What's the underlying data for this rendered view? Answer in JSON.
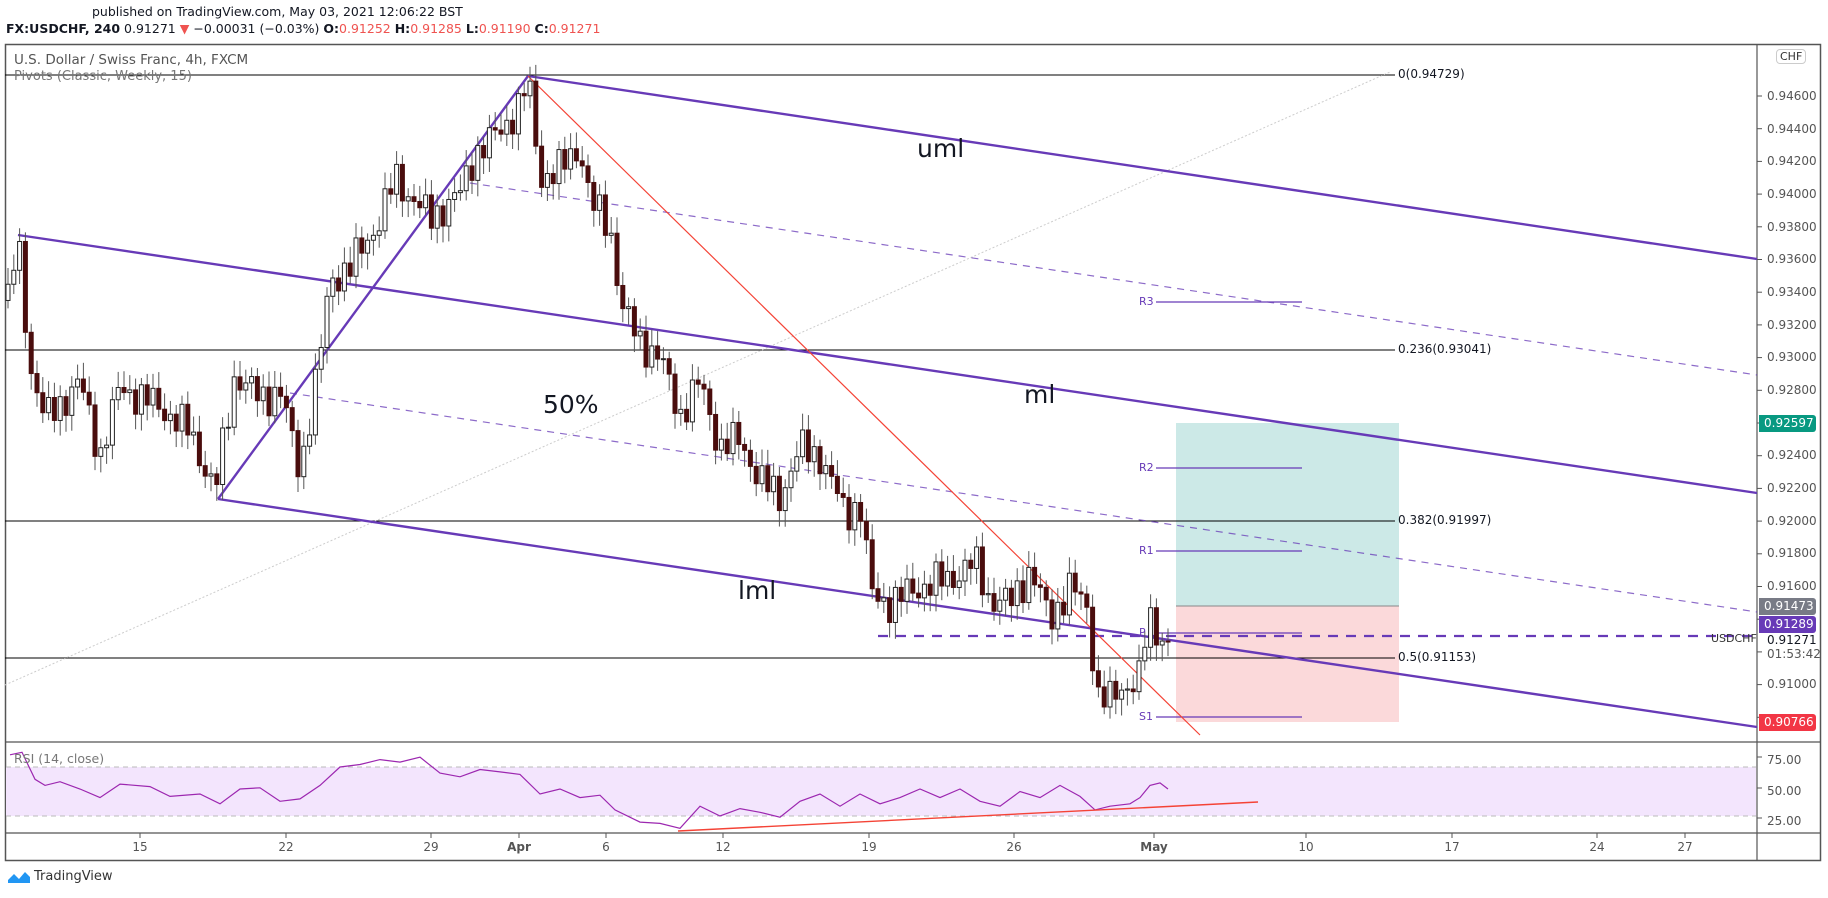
{
  "header": {
    "published": "published on TradingView.com, May 03, 2021 12:06:22 BST",
    "symbol": "FX:USDCHF, 240",
    "last": "0.91271",
    "change": "−0.00031 (−0.03%)",
    "o_label": "O:",
    "o": "0.91252",
    "h_label": "H:",
    "h": "0.91285",
    "l_label": "L:",
    "l": "0.91190",
    "c_label": "C:",
    "c": "0.91271"
  },
  "chart_title": "U.S. Dollar / Swiss Franc, 4h, FXCM",
  "indicator": "Pivots (Classic, Weekly, 15)",
  "rsi_label": "RSI (14, close)",
  "currency_badge": "CHF",
  "annotations": {
    "uml": "uml",
    "ml": "ml",
    "lml": "lml",
    "fifty": "50%",
    "fib0": "0(0.94729)",
    "fib236": "0.236(0.93041)",
    "fib382": "0.382(0.91997)",
    "fib5": "0.5(0.91153)",
    "r3": "R3",
    "r2": "R2",
    "r1": "R1",
    "p": "P",
    "s1": "S1"
  },
  "price_axis": [
    "0.94600",
    "0.94400",
    "0.94200",
    "0.94000",
    "0.93800",
    "0.93600",
    "0.93400",
    "0.93200",
    "0.93000",
    "0.92800",
    "0.92400",
    "0.92200",
    "0.92000",
    "0.91800",
    "0.91600",
    "0.91000"
  ],
  "price_tags": {
    "target": "0.92597",
    "entry": "0.91473",
    "pivot": "0.91289",
    "last": "0.91271",
    "stop": "0.90766",
    "symbol_label": "USDCHF",
    "countdown": "01:53:42"
  },
  "rsi_axis": [
    "75.00",
    "50.00",
    "25.00"
  ],
  "time_axis": [
    "15",
    "22",
    "29",
    "Apr",
    "6",
    "12",
    "19",
    "26",
    "May",
    "10",
    "17",
    "24",
    "27"
  ],
  "logo_text": "TradingView",
  "colors": {
    "channel": "#673ab7",
    "trendline": "#f44336",
    "target_fill": "#cce9e7",
    "stop_fill": "#fbd9da",
    "target_tag": "#089981",
    "stop_tag": "#f23645",
    "entry_tag": "#787b86",
    "pivot_tag": "#673ab7",
    "rsi_line": "#9c27b0",
    "rsi_band": "#f3e5fd",
    "bear_candle": "#4a0d0d"
  },
  "chart_data": {
    "type": "candlestick",
    "title": "U.S. Dollar / Swiss Franc, 4h, FXCM",
    "symbol": "FX:USDCHF",
    "timeframe": "4h",
    "ohlc_last": {
      "open": 0.91252,
      "high": 0.91285,
      "low": 0.9119,
      "close": 0.91271
    },
    "ylim": [
      0.906,
      0.948
    ],
    "x_ticks": [
      "15",
      "22",
      "29",
      "Apr",
      "6",
      "12",
      "19",
      "26",
      "May",
      "10",
      "17",
      "24",
      "27"
    ],
    "key_points": [
      {
        "date": "Mar 10",
        "price": 0.9375,
        "note": "swing high"
      },
      {
        "date": "Mar 18",
        "price": 0.9215,
        "note": "swing low"
      },
      {
        "date": "Mar 31",
        "price": 0.94729,
        "note": "top / fib 0"
      },
      {
        "date": "Apr 19",
        "price": 0.913,
        "note": "low"
      },
      {
        "date": "Apr 29",
        "price": 0.9082,
        "note": "low"
      },
      {
        "date": "May 3",
        "price": 0.91271,
        "note": "last"
      }
    ],
    "fibonacci": [
      {
        "level": 0,
        "price": 0.94729
      },
      {
        "level": 0.236,
        "price": 0.93041
      },
      {
        "level": 0.382,
        "price": 0.91997
      },
      {
        "level": 0.5,
        "price": 0.91153
      }
    ],
    "pivots_weekly": {
      "R3": 0.9334,
      "R2": 0.9232,
      "R1": 0.9182,
      "P": 0.913,
      "S1": 0.908
    },
    "position": {
      "type": "long",
      "entry": 0.91473,
      "target": 0.92597,
      "stop": 0.90766
    },
    "pitchfork_lines": [
      "uml",
      "ml",
      "lml"
    ],
    "rsi": {
      "period": 14,
      "upper": 70,
      "lower": 30,
      "last": 52,
      "ylim": [
        15,
        85
      ],
      "ticks": [
        75,
        50,
        25
      ]
    }
  }
}
